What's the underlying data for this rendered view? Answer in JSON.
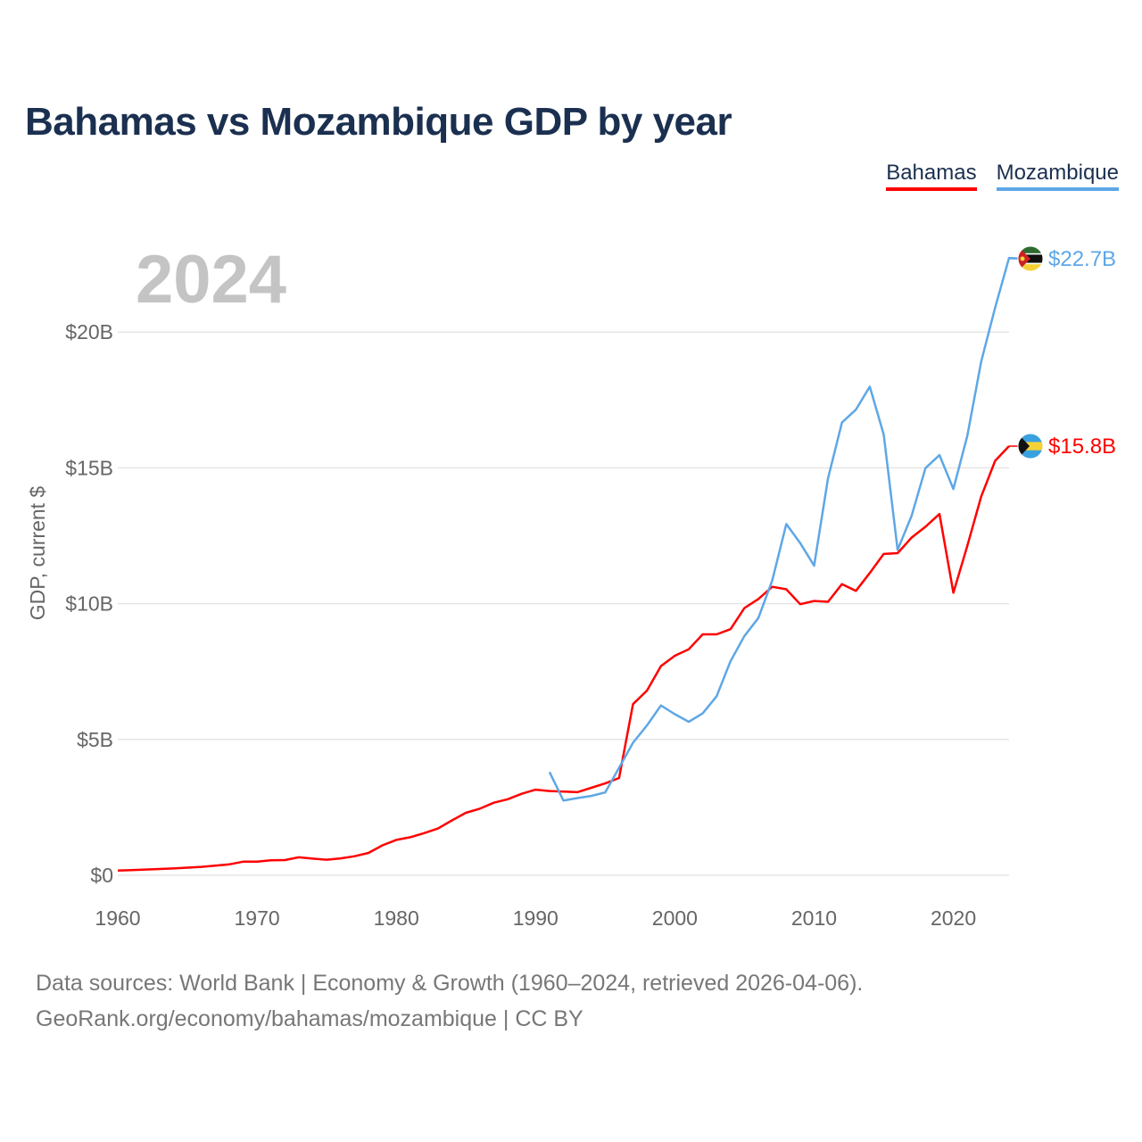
{
  "title": "Bahamas vs Mozambique GDP by year",
  "legend": [
    {
      "label": "Bahamas",
      "color": "#ff0000"
    },
    {
      "label": "Mozambique",
      "color": "#5ea7e6"
    }
  ],
  "year_label": "2024",
  "footer": {
    "line1": "Data sources: World Bank | Economy & Growth (1960–2024, retrieved 2026-04-06).",
    "line2": "GeoRank.org/economy/bahamas/mozambique | CC BY"
  },
  "chart_data": {
    "type": "line",
    "title": "Bahamas vs Mozambique GDP by year",
    "xlabel": "",
    "ylabel": "GDP, current $",
    "xlim": [
      1960,
      2024
    ],
    "ylim": [
      0,
      22.7
    ],
    "y_unit": "billion current US$",
    "grid": true,
    "x_ticks": [
      {
        "value": 1960,
        "label": "1960"
      },
      {
        "value": 1970,
        "label": "1970"
      },
      {
        "value": 1980,
        "label": "1980"
      },
      {
        "value": 1990,
        "label": "1990"
      },
      {
        "value": 2000,
        "label": "2000"
      },
      {
        "value": 2010,
        "label": "2010"
      },
      {
        "value": 2020,
        "label": "2020"
      }
    ],
    "y_ticks": [
      {
        "value": 0,
        "label": "$0"
      },
      {
        "value": 5,
        "label": "$5B"
      },
      {
        "value": 10,
        "label": "$10B"
      },
      {
        "value": 15,
        "label": "$15B"
      },
      {
        "value": 20,
        "label": "$20B"
      }
    ],
    "series": [
      {
        "name": "Bahamas",
        "color": "#ff0000",
        "end_label": "$15.8B",
        "flag_icon": "bahamas-flag-icon",
        "start_year": 1960,
        "values": [
          0.17,
          0.19,
          0.21,
          0.23,
          0.25,
          0.28,
          0.31,
          0.35,
          0.4,
          0.5,
          0.5,
          0.55,
          0.56,
          0.66,
          0.61,
          0.57,
          0.62,
          0.7,
          0.82,
          1.1,
          1.3,
          1.4,
          1.55,
          1.72,
          2.02,
          2.3,
          2.45,
          2.67,
          2.8,
          3.0,
          3.15,
          3.1,
          3.08,
          3.06,
          3.22,
          3.38,
          3.58,
          6.3,
          6.8,
          7.7,
          8.08,
          8.32,
          8.87,
          8.87,
          9.06,
          9.84,
          10.17,
          10.62,
          10.53,
          9.98,
          10.1,
          10.07,
          10.72,
          10.47,
          11.13,
          11.83,
          11.86,
          12.43,
          12.83,
          13.3,
          10.4,
          12.13,
          13.95,
          15.26,
          15.8
        ]
      },
      {
        "name": "Mozambique",
        "color": "#5ea7e6",
        "end_label": "$22.7B",
        "flag_icon": "mozambique-flag-icon",
        "start_year": 1991,
        "values": [
          3.8,
          2.75,
          2.84,
          2.92,
          3.05,
          3.96,
          4.88,
          5.52,
          6.25,
          5.93,
          5.65,
          5.96,
          6.59,
          7.88,
          8.81,
          9.47,
          10.86,
          12.93,
          12.23,
          11.4,
          14.62,
          16.67,
          17.14,
          17.99,
          16.23,
          11.98,
          13.23,
          14.99,
          15.47,
          14.22,
          16.18,
          18.92,
          20.9,
          22.73,
          22.7
        ]
      }
    ]
  }
}
